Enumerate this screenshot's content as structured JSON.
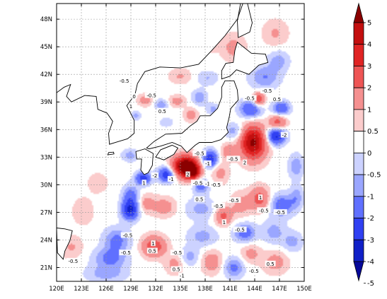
{
  "map": {
    "lon_ticks": [
      "120E",
      "123E",
      "126E",
      "129E",
      "132E",
      "135E",
      "138E",
      "141E",
      "144E",
      "147E",
      "150E"
    ],
    "lat_ticks": [
      "21N",
      "24N",
      "27N",
      "30N",
      "33N",
      "36N",
      "39N",
      "42N",
      "45N",
      "48N"
    ],
    "lon_range": [
      120,
      150
    ],
    "lat_range": [
      19.5,
      49.7
    ],
    "grid": true,
    "land_color": "#ffffff",
    "coastline_color": "#000000",
    "contour_labels": [
      {
        "text": "-0.5",
        "lon": 128.2,
        "lat": 41.3
      },
      {
        "text": "-0.5",
        "lon": 131.5,
        "lat": 39.7
      },
      {
        "text": "0",
        "lon": 129.4,
        "lat": 39.6
      },
      {
        "text": "1",
        "lon": 129.0,
        "lat": 38.5
      },
      {
        "text": "-0.5",
        "lon": 143.4,
        "lat": 39.4
      },
      {
        "text": "-0.5",
        "lon": 145.5,
        "lat": 40.2
      },
      {
        "text": "0.5",
        "lon": 146.7,
        "lat": 39.3
      },
      {
        "text": "-2",
        "lon": 147.6,
        "lat": 35.4
      },
      {
        "text": "-0.5",
        "lon": 137.3,
        "lat": 33.4
      },
      {
        "text": "-1",
        "lon": 138.3,
        "lat": 32.3
      },
      {
        "text": "2",
        "lon": 142.8,
        "lat": 32.4
      },
      {
        "text": "-0.5",
        "lon": 141.4,
        "lat": 32.8
      },
      {
        "text": "-2",
        "lon": 131.9,
        "lat": 31.0
      },
      {
        "text": "-1",
        "lon": 133.9,
        "lat": 30.6
      },
      {
        "text": "2",
        "lon": 135.9,
        "lat": 31.1
      },
      {
        "text": "-0.5",
        "lon": 137.1,
        "lat": 30.2
      },
      {
        "text": "-1",
        "lon": 138.3,
        "lat": 30.1
      },
      {
        "text": "-0.5",
        "lon": 139.3,
        "lat": 30.0
      },
      {
        "text": "1",
        "lon": 130.6,
        "lat": 30.2
      },
      {
        "text": "0.5",
        "lon": 137.3,
        "lat": 28.4
      },
      {
        "text": "-0.5",
        "lon": 139.6,
        "lat": 27.7
      },
      {
        "text": "-0.5",
        "lon": 141.5,
        "lat": 28.3
      },
      {
        "text": "-0.5",
        "lon": 145.1,
        "lat": 27.2
      },
      {
        "text": "-0.5",
        "lon": 147.1,
        "lat": 27.0
      },
      {
        "text": "1",
        "lon": 144.7,
        "lat": 28.6
      },
      {
        "text": "1",
        "lon": 140.3,
        "lat": 25.9
      },
      {
        "text": "-0.5",
        "lon": 142.2,
        "lat": 25.1
      },
      {
        "text": "-0.5",
        "lon": 128.6,
        "lat": 24.5
      },
      {
        "text": "-0.5",
        "lon": 128.4,
        "lat": 22.6
      },
      {
        "text": "1",
        "lon": 131.7,
        "lat": 23.6
      },
      {
        "text": "0.5",
        "lon": 131.6,
        "lat": 22.8
      },
      {
        "text": "-0.5",
        "lon": 134.6,
        "lat": 22.6
      },
      {
        "text": "-0.5",
        "lon": 122.0,
        "lat": 21.7
      },
      {
        "text": "0.5",
        "lon": 134.5,
        "lat": 20.8
      },
      {
        "text": "-1",
        "lon": 135.2,
        "lat": 20.1
      },
      {
        "text": "-0.5",
        "lon": 143.9,
        "lat": 20.6
      },
      {
        "text": "0.5",
        "lon": 145.9,
        "lat": 21.4
      },
      {
        "text": "0.5",
        "lon": 132.8,
        "lat": 38.0
      }
    ]
  },
  "colorbar": {
    "labels": [
      "5",
      "4",
      "3",
      "2",
      "1",
      "0.5",
      "0",
      "-0.5",
      "-1",
      "-2",
      "-3",
      "-4",
      "-5"
    ],
    "colors": [
      "#8b0000",
      "#c30f0f",
      "#e02424",
      "#ee5555",
      "#f59090",
      "#fbcccc",
      "#ffffff",
      "#ccd2ff",
      "#9aa6ff",
      "#6070ff",
      "#3040f2",
      "#1020c8",
      "#06089a"
    ]
  },
  "fields": {
    "positive_color_scale": [
      "#fbcccc",
      "#f59090",
      "#ee5555",
      "#e02424",
      "#c30f0f",
      "#8b0000"
    ],
    "negative_color_scale": [
      "#ccd2ff",
      "#9aa6ff",
      "#6070ff",
      "#3040f2",
      "#1020c8",
      "#06089a"
    ]
  }
}
